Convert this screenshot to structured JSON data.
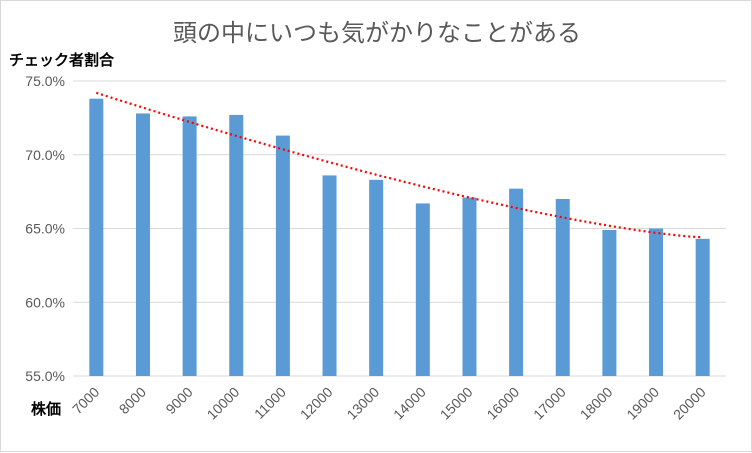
{
  "chart_data": {
    "type": "bar",
    "title": "頭の中にいつも気がかりなことがある",
    "ylabel": "チェック者割合",
    "xlabel": "株価",
    "categories": [
      "7000",
      "8000",
      "9000",
      "10000",
      "11000",
      "12000",
      "13000",
      "14000",
      "15000",
      "16000",
      "17000",
      "18000",
      "19000",
      "20000"
    ],
    "series": [
      {
        "values": [
          73.8,
          72.8,
          72.6,
          72.7,
          71.3,
          68.6,
          68.3,
          66.7,
          67.1,
          67.7,
          67.0,
          64.9,
          65.0,
          64.3
        ]
      }
    ],
    "trendline": {
      "type": "dotted",
      "color": "#ff0000",
      "start": 74.2,
      "end": 64.4
    },
    "ylim": [
      55,
      75
    ],
    "yticks": [
      "55.0%",
      "60.0%",
      "65.0%",
      "70.0%",
      "75.0%"
    ],
    "ytick_values": [
      55,
      60,
      65,
      70,
      75
    ],
    "grid": true,
    "bar_color": "#5b9bd5",
    "gridline_color": "#d9d9d9"
  }
}
